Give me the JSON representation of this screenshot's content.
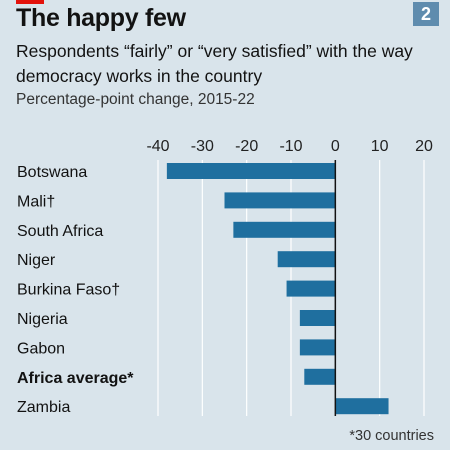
{
  "header": {
    "title": "The happy few",
    "chart_number": "2",
    "subtitle": "Respondents “fairly” or “very satisfied” with the way democracy works in the country",
    "unit_note": "Percentage-point change, 2015-22"
  },
  "footnote": "*30 countries",
  "colors": {
    "background": "#d9e4eb",
    "bar": "#1f6f9f",
    "brand_red": "#e3120b",
    "number_box": "#5f8cae",
    "gridline": "#ffffff",
    "zero_line": "#121212"
  },
  "chart_data": {
    "type": "bar",
    "orientation": "horizontal",
    "categories": [
      "Botswana",
      "Mali†",
      "South Africa",
      "Niger",
      "Burkina Faso†",
      "Nigeria",
      "Gabon",
      "Africa average*",
      "Zambia"
    ],
    "values": [
      -38,
      -25,
      -23,
      -13,
      -11,
      -8,
      -8,
      -7,
      12
    ],
    "highlight_category": "Africa average*",
    "xlim": [
      -40,
      20
    ],
    "xticks": [
      -40,
      -30,
      -20,
      -10,
      0,
      10,
      20
    ],
    "xtick_labels": [
      "-40",
      "-30",
      "-20",
      "-10",
      "0",
      "10",
      "20"
    ],
    "xaxis_position": "top",
    "grid": true
  }
}
